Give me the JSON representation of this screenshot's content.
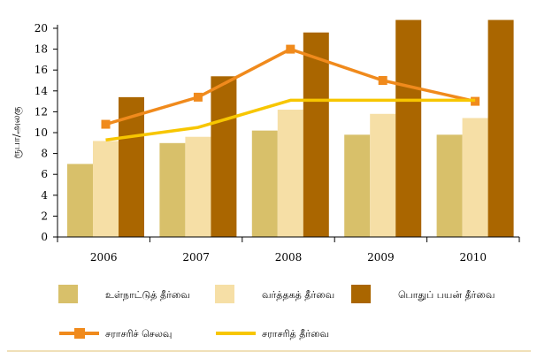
{
  "chart_data": {
    "type": "bar",
    "categories": [
      "2006",
      "2007",
      "2008",
      "2009",
      "2010"
    ],
    "ylabel": "ரூபா/அலகு",
    "ylim": [
      0,
      20
    ],
    "yticks": [
      "0",
      "2",
      "4",
      "6",
      "8",
      "10",
      "12",
      "14",
      "16",
      "18",
      "20"
    ],
    "grid": false,
    "legend_position": "bottom",
    "series": [
      {
        "name": "உள்நாட்டுத் தீர்வை",
        "type": "bar",
        "color": "#d8c06a",
        "values": [
          7.0,
          9.0,
          10.2,
          9.8,
          9.8
        ]
      },
      {
        "name": "வர்த்தகத் தீர்வை",
        "type": "bar",
        "color": "#f6dfa6",
        "values": [
          9.2,
          9.6,
          12.2,
          11.8,
          11.4
        ]
      },
      {
        "name": "பொதுப் பயன் தீர்வை",
        "type": "bar",
        "color": "#aa6600",
        "values": [
          13.4,
          15.4,
          19.6,
          20.8,
          20.8
        ]
      },
      {
        "name": "சராசரிச் செலவு",
        "type": "line",
        "color": "#f08a1c",
        "marker": "square",
        "values": [
          10.8,
          13.4,
          18.0,
          15.0,
          13.0
        ]
      },
      {
        "name": "சராசரித் தீர்வை",
        "type": "line",
        "color": "#f7c600",
        "marker": "none",
        "values": [
          9.3,
          10.5,
          13.1,
          13.1,
          13.1
        ]
      }
    ]
  }
}
